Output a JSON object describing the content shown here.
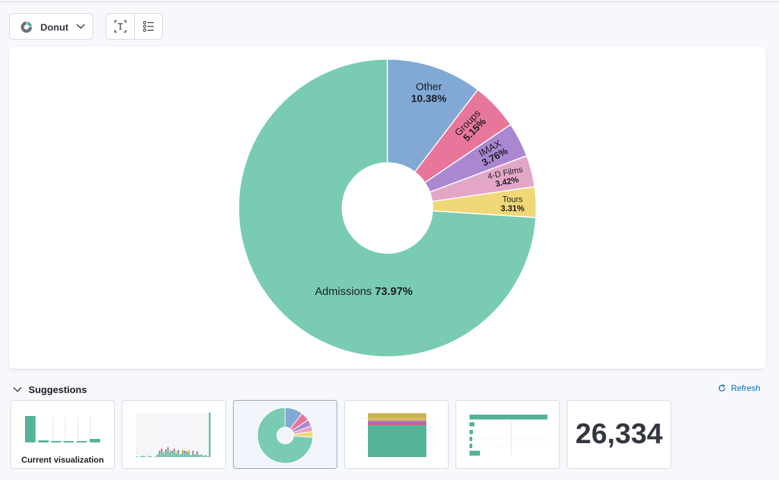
{
  "toolbar": {
    "chart_type_label": "Donut"
  },
  "chart_data": {
    "type": "pie",
    "donut": true,
    "slices": [
      {
        "label": "Other",
        "value": 10.38,
        "value_label": "10.38%",
        "color": "#82a9d6"
      },
      {
        "label": "Groups",
        "value": 5.15,
        "value_label": "5.15%",
        "color": "#e8769b"
      },
      {
        "label": "IMAX",
        "value": 3.76,
        "value_label": "3.76%",
        "color": "#a987d1"
      },
      {
        "label": "4-D Films",
        "value": 3.42,
        "value_label": "3.42%",
        "color": "#e4a6c7"
      },
      {
        "label": "Tours",
        "value": 3.31,
        "value_label": "3.31%",
        "color": "#efd875"
      },
      {
        "label": "Admissions",
        "value": 73.97,
        "value_label": "73.97%",
        "color": "#79ccb3"
      }
    ]
  },
  "suggestions": {
    "title": "Suggestions",
    "refresh_label": "Refresh",
    "current_caption": "Current visualization",
    "metric_value": "26,334"
  },
  "colors": {
    "accent_link": "#006bb8",
    "series_teal": "#54b399",
    "border": "#d3dae6"
  }
}
